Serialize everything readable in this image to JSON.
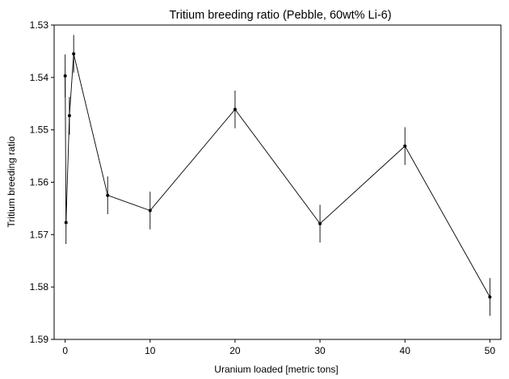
{
  "chart_data": {
    "type": "line",
    "title": "Tritium breeding ratio (Pebble, 60wt% Li-6)",
    "xlabel": "Uranium loaded [metric tons]",
    "ylabel": "Tritium breeding ratio",
    "xlim": [
      -1.3,
      51.3
    ],
    "ylim": [
      1.53,
      1.59
    ],
    "y_inverted": true,
    "xticks": [
      0,
      10,
      20,
      30,
      40,
      50
    ],
    "xtick_labels": [
      "0",
      "10",
      "20",
      "30",
      "40",
      "50"
    ],
    "yticks": [
      1.53,
      1.54,
      1.55,
      1.56,
      1.57,
      1.58,
      1.59
    ],
    "ytick_labels": [
      "1.53",
      "1.54",
      "1.55",
      "1.56",
      "1.57",
      "1.58",
      "1.59"
    ],
    "grid": false,
    "legend": "none",
    "colors": {
      "line": "#000000",
      "marker": "#000000"
    },
    "series": [
      {
        "x": [
          0,
          0.1,
          0.5,
          1,
          5,
          10,
          20,
          30,
          40,
          50
        ],
        "y": [
          1.5397,
          1.5677,
          1.5473,
          1.5355,
          1.5625,
          1.5654,
          1.5461,
          1.5679,
          1.5531,
          1.5819
        ],
        "err": [
          0.0041,
          0.0041,
          0.0036,
          0.0036,
          0.0036,
          0.0036,
          0.0036,
          0.0036,
          0.0036,
          0.0036
        ]
      }
    ]
  }
}
